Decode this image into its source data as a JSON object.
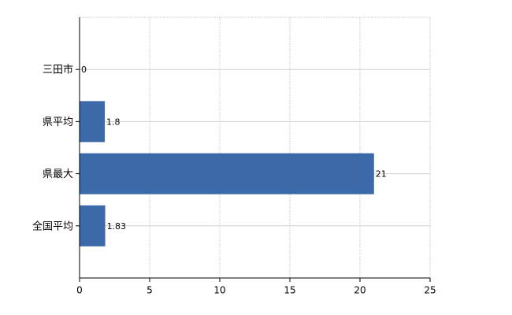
{
  "chart_data": {
    "type": "bar",
    "orientation": "horizontal",
    "categories": [
      "三田市",
      "県平均",
      "県最大",
      "全国平均"
    ],
    "values": [
      0,
      1.8,
      21,
      1.83
    ],
    "color": "#3c69a7",
    "xlim": [
      0,
      25
    ],
    "xticks": [
      0,
      5,
      10,
      15,
      20,
      25
    ],
    "grid": true
  }
}
